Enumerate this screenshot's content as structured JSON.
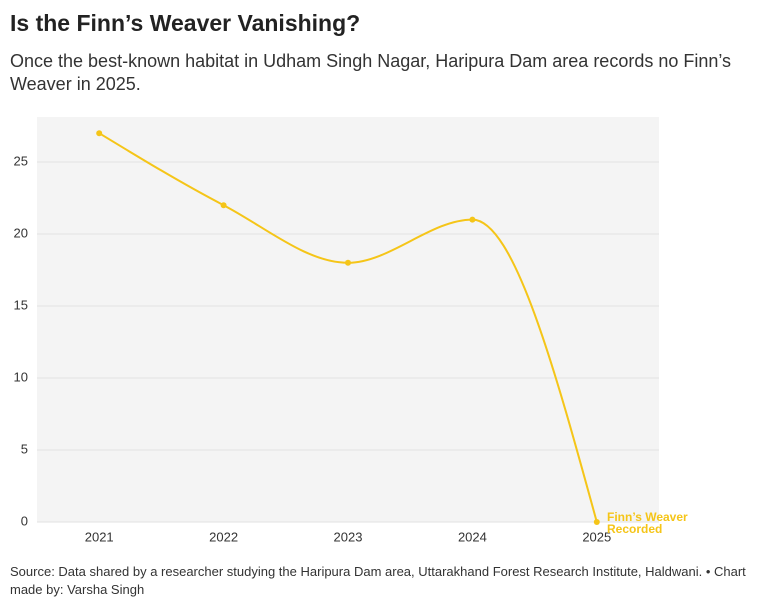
{
  "chart_data": {
    "type": "line",
    "title": "Is the Finn’s Weaver Vanishing?",
    "subtitle": "Once the best-known habitat in Udham Singh Nagar, Haripura Dam area records no Finn’s Weaver in 2025.",
    "categories": [
      "2021",
      "2022",
      "2023",
      "2024",
      "2025"
    ],
    "series": [
      {
        "name": "Finn’s Weaver Recorded",
        "color": "#f5c518",
        "values": [
          27,
          22,
          18,
          21,
          0
        ]
      }
    ],
    "ylim": [
      0,
      28
    ],
    "yticks": [
      0,
      5,
      10,
      15,
      20,
      25
    ],
    "grid": true,
    "source": "Source: Data shared by a researcher studying the Haripura Dam area, Uttarakhand Forest Research Institute, Haldwani. • Chart made by: Varsha Singh"
  }
}
